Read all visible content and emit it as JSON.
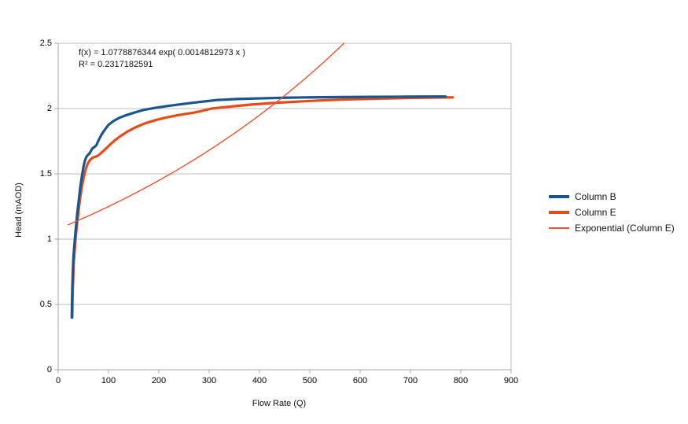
{
  "page": {
    "background": "#FFFFFF"
  },
  "chart_data": {
    "type": "line",
    "title": "",
    "xlabel": "Flow Rate (Q)",
    "ylabel": "Head (mAOD)",
    "xlim": [
      0,
      900
    ],
    "ylim": [
      0,
      2.5
    ],
    "x_ticks": [
      0,
      100,
      200,
      300,
      400,
      500,
      600,
      700,
      800,
      900
    ],
    "x_tick_labels": [
      "0",
      "100",
      "200",
      "300",
      "400",
      "500",
      "600",
      "700",
      "800",
      "900"
    ],
    "y_ticks": [
      0,
      0.5,
      1,
      1.5,
      2,
      2.5
    ],
    "y_tick_labels": [
      "0",
      "0.5",
      "1",
      "1.5",
      "2",
      "2.5"
    ],
    "grid": {
      "horizontal_major": true,
      "vertical_major": false,
      "gridline_color": "#BEBEBE",
      "axis_color": "#A6A6A6",
      "right_frame": true,
      "top_frame": true
    },
    "legend_position": "right",
    "annotation": {
      "equation": "f(x) = 1.0778876344 exp( 0.0014812973 x )",
      "r_squared": "R² = 0.2317182591"
    },
    "series": [
      {
        "name": "Column B",
        "type": "line",
        "color": "#1B548E",
        "width": 3.2,
        "points": [
          [
            27,
            0.4
          ],
          [
            27.5,
            0.52
          ],
          [
            28,
            0.62
          ],
          [
            29,
            0.74
          ],
          [
            30,
            0.84
          ],
          [
            32,
            0.95
          ],
          [
            34,
            1.04
          ],
          [
            36,
            1.12
          ],
          [
            38,
            1.2
          ],
          [
            41,
            1.3
          ],
          [
            44,
            1.4
          ],
          [
            47,
            1.48
          ],
          [
            50,
            1.55
          ],
          [
            53,
            1.6
          ],
          [
            56,
            1.63
          ],
          [
            59,
            1.645
          ],
          [
            62,
            1.655
          ],
          [
            65,
            1.675
          ],
          [
            68,
            1.695
          ],
          [
            72,
            1.705
          ],
          [
            76,
            1.72
          ],
          [
            80,
            1.755
          ],
          [
            86,
            1.8
          ],
          [
            93,
            1.84
          ],
          [
            100,
            1.875
          ],
          [
            110,
            1.905
          ],
          [
            122,
            1.93
          ],
          [
            136,
            1.95
          ],
          [
            152,
            1.97
          ],
          [
            170,
            1.99
          ],
          [
            192,
            2.005
          ],
          [
            218,
            2.02
          ],
          [
            248,
            2.035
          ],
          [
            280,
            2.05
          ],
          [
            315,
            2.065
          ],
          [
            355,
            2.073
          ],
          [
            400,
            2.078
          ],
          [
            450,
            2.083
          ],
          [
            505,
            2.086
          ],
          [
            565,
            2.088
          ],
          [
            625,
            2.09
          ],
          [
            690,
            2.091
          ],
          [
            740,
            2.092
          ],
          [
            770,
            2.092
          ]
        ]
      },
      {
        "name": "Column E",
        "type": "line",
        "color": "#E84B17",
        "width": 3.2,
        "points": [
          [
            28,
            0.4
          ],
          [
            28.5,
            0.52
          ],
          [
            29,
            0.62
          ],
          [
            30,
            0.72
          ],
          [
            31,
            0.82
          ],
          [
            33,
            0.93
          ],
          [
            35,
            1.02
          ],
          [
            37,
            1.1
          ],
          [
            40,
            1.2
          ],
          [
            43,
            1.3
          ],
          [
            47,
            1.4
          ],
          [
            51,
            1.48
          ],
          [
            55,
            1.54
          ],
          [
            59,
            1.58
          ],
          [
            63,
            1.605
          ],
          [
            67,
            1.62
          ],
          [
            71,
            1.628
          ],
          [
            76,
            1.633
          ],
          [
            81,
            1.645
          ],
          [
            87,
            1.665
          ],
          [
            94,
            1.69
          ],
          [
            102,
            1.72
          ],
          [
            112,
            1.755
          ],
          [
            124,
            1.79
          ],
          [
            138,
            1.825
          ],
          [
            154,
            1.857
          ],
          [
            172,
            1.886
          ],
          [
            192,
            1.91
          ],
          [
            215,
            1.932
          ],
          [
            242,
            1.952
          ],
          [
            272,
            1.97
          ],
          [
            305,
            2.0
          ],
          [
            342,
            2.015
          ],
          [
            382,
            2.03
          ],
          [
            425,
            2.042
          ],
          [
            470,
            2.052
          ],
          [
            520,
            2.062
          ],
          [
            575,
            2.07
          ],
          [
            635,
            2.076
          ],
          [
            695,
            2.081
          ],
          [
            750,
            2.084
          ],
          [
            784,
            2.086
          ]
        ]
      },
      {
        "name": "Exponential (Column E)",
        "type": "trendline",
        "model": "exponential",
        "color": "#EF5130",
        "width": 1.4,
        "a": 1.0778876344,
        "b": 0.0014812973,
        "x_range": [
          20,
          570
        ]
      }
    ]
  }
}
